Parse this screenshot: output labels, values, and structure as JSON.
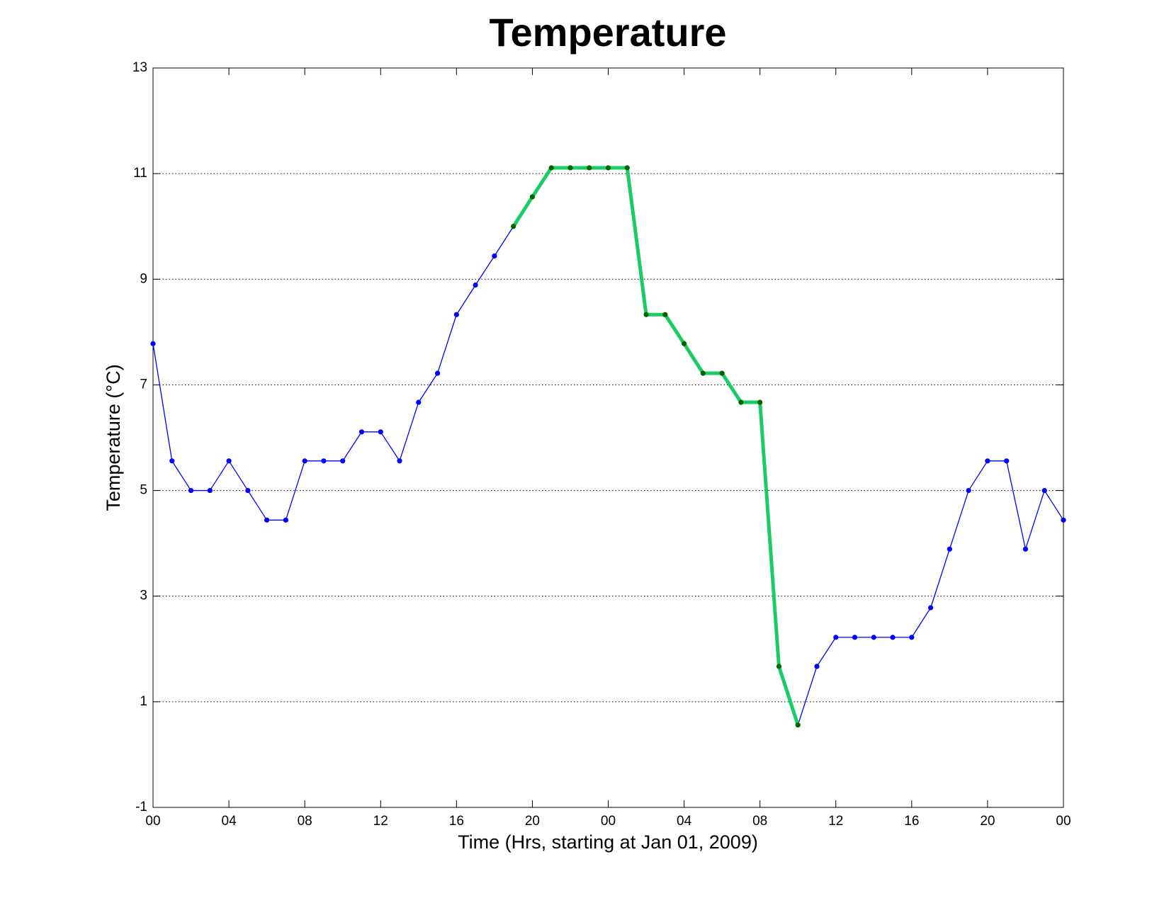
{
  "chart_data": {
    "type": "line",
    "title": "Temperature",
    "xlabel": "Time (Hrs, starting at Jan 01, 2009)",
    "ylabel": "Temperature (°C)",
    "x": [
      0,
      1,
      2,
      3,
      4,
      5,
      6,
      7,
      8,
      9,
      10,
      11,
      12,
      13,
      14,
      15,
      16,
      17,
      18,
      19,
      20,
      21,
      22,
      23,
      24,
      25,
      26,
      27,
      28,
      29,
      30,
      31,
      32,
      33,
      34,
      35,
      36,
      37,
      38,
      39,
      40,
      41,
      42,
      43,
      44,
      45,
      46,
      47,
      48
    ],
    "series": [
      {
        "color": "#0000ff",
        "values": [
          7.78,
          5.56,
          5.0,
          5.0,
          5.56,
          5.0,
          4.44,
          4.44,
          5.56,
          5.56,
          5.56,
          6.11,
          6.11,
          5.56,
          6.67,
          7.22,
          8.33,
          8.89,
          9.44,
          10.0,
          10.56,
          11.11,
          11.11,
          11.11,
          11.11,
          11.11,
          8.33,
          8.33,
          7.78,
          7.22,
          7.22,
          6.67,
          6.67,
          1.67,
          0.56,
          1.67,
          2.22,
          2.22,
          2.22,
          2.22,
          2.22,
          2.78,
          3.89,
          5.0,
          5.56,
          5.56,
          3.89,
          5.0,
          4.44
        ]
      }
    ],
    "highlight": {
      "x": [
        19,
        34
      ],
      "color": "#19cc66",
      "marker_color": "#006400"
    },
    "xlim": [
      0,
      48
    ],
    "xticks": [
      {
        "value": 0,
        "label": "00"
      },
      {
        "value": 4,
        "label": "04"
      },
      {
        "value": 8,
        "label": "08"
      },
      {
        "value": 12,
        "label": "12"
      },
      {
        "value": 16,
        "label": "16"
      },
      {
        "value": 20,
        "label": "20"
      },
      {
        "value": 24,
        "label": "00"
      },
      {
        "value": 28,
        "label": "04"
      },
      {
        "value": 32,
        "label": "08"
      },
      {
        "value": 36,
        "label": "12"
      },
      {
        "value": 40,
        "label": "16"
      },
      {
        "value": 44,
        "label": "20"
      },
      {
        "value": 48,
        "label": "00"
      }
    ],
    "ylim": [
      -1,
      13
    ],
    "yticks": [
      -1,
      1,
      3,
      5,
      7,
      9,
      11,
      13
    ],
    "grid": true
  }
}
